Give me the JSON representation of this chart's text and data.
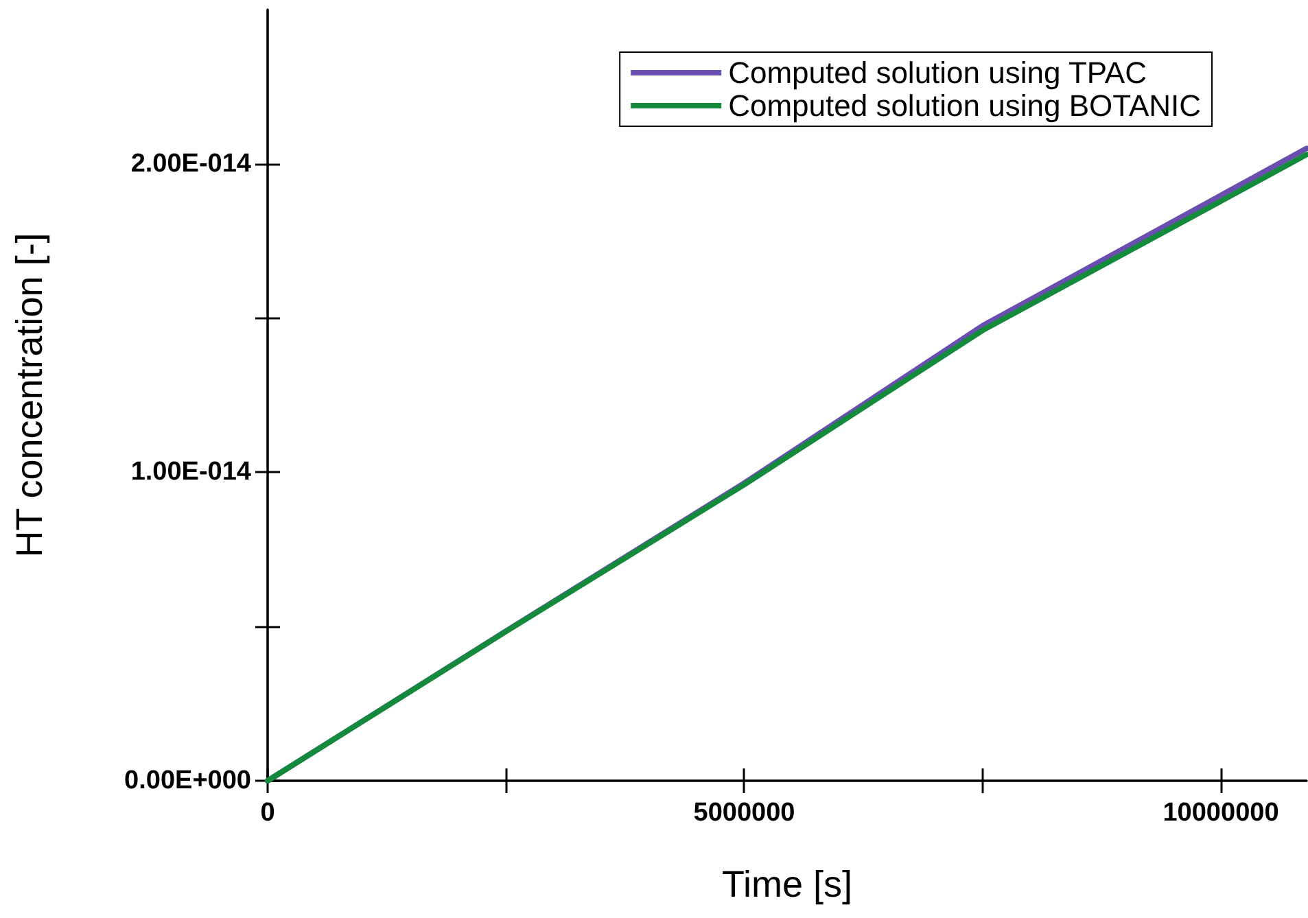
{
  "chart_data": {
    "type": "line",
    "xlabel": "Time [s]",
    "ylabel": "HT concentration [-]",
    "x": [
      0,
      2500000,
      5000000,
      7500000,
      10900000
    ],
    "series": [
      {
        "name": "Computed solution using TPAC",
        "color": "#6a4fb0",
        "values": [
          0,
          4.85e-15,
          9.65e-15,
          1.475e-14,
          2.05e-14
        ]
      },
      {
        "name": "Computed solution using BOTANIC",
        "color": "#138a3c",
        "values": [
          0,
          4.84e-15,
          9.6e-15,
          1.46e-14,
          2.03e-14
        ]
      }
    ],
    "xlim": [
      0,
      10900000
    ],
    "ylim": [
      0,
      2.5e-14
    ],
    "xticks": [
      0,
      {
        "value": 2500000,
        "label": null
      },
      5000000,
      {
        "value": 7500000,
        "label": null
      },
      10000000
    ],
    "yticks": [
      {
        "value": 0,
        "label": "0.00E+000"
      },
      {
        "value": 5e-15,
        "label": null
      },
      {
        "value": 1e-14,
        "label": "1.00E-014"
      },
      {
        "value": 1.5e-14,
        "label": null
      },
      {
        "value": 2e-14,
        "label": "2.00E-014"
      }
    ],
    "grid": false,
    "legend": "top right",
    "marker": "none",
    "line_style": "solid"
  }
}
